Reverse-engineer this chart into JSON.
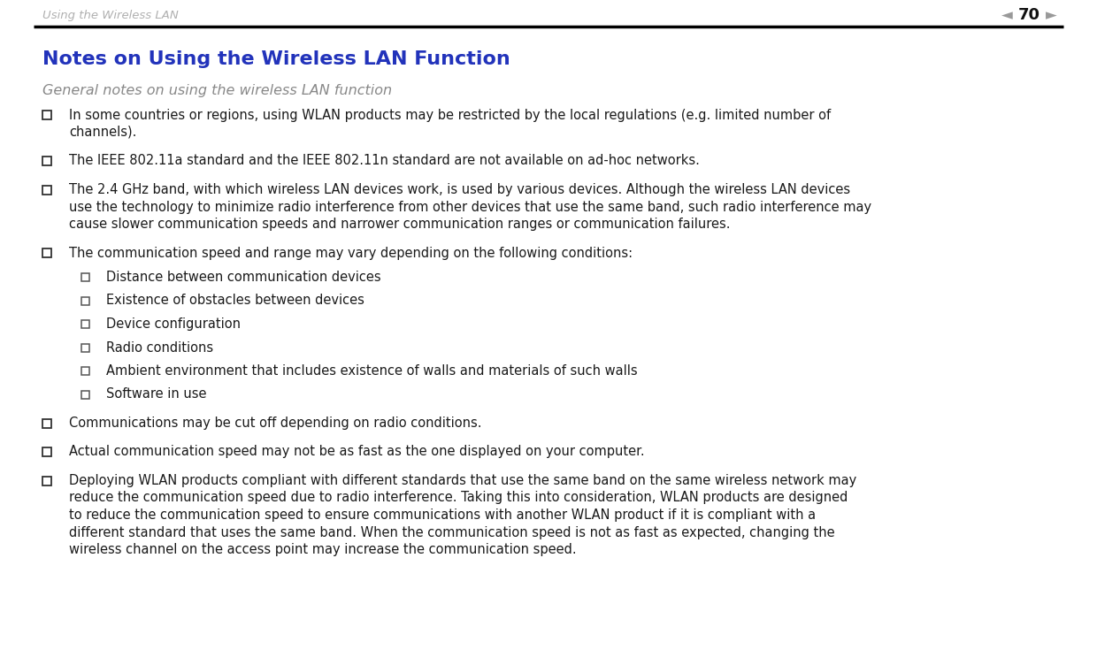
{
  "bg_color": "#ffffff",
  "header_text": "Using the Wireless LAN",
  "header_color": "#b0b0b0",
  "page_number": "70",
  "separator_color": "#000000",
  "title": "Notes on Using the Wireless LAN Function",
  "title_color": "#2233bb",
  "subtitle": "General notes on using the wireless LAN function",
  "subtitle_color": "#888888",
  "bullet_color": "#333333",
  "text_color": "#1a1a1a",
  "main_bullets": [
    "In some countries or regions, using WLAN products may be restricted by the local regulations (e.g. limited number of\nchannels).",
    "The IEEE 802.11a standard and the IEEE 802.11n standard are not available on ad-hoc networks.",
    "The 2.4 GHz band, with which wireless LAN devices work, is used by various devices. Although the wireless LAN devices\nuse the technology to minimize radio interference from other devices that use the same band, such radio interference may\ncause slower communication speeds and narrower communication ranges or communication failures.",
    "The communication speed and range may vary depending on the following conditions:",
    "Communications may be cut off depending on radio conditions.",
    "Actual communication speed may not be as fast as the one displayed on your computer.",
    "Deploying WLAN products compliant with different standards that use the same band on the same wireless network may\nreduce the communication speed due to radio interference. Taking this into consideration, WLAN products are designed\nto reduce the communication speed to ensure communications with another WLAN product if it is compliant with a\ndifferent standard that uses the same band. When the communication speed is not as fast as expected, changing the\nwireless channel on the access point may increase the communication speed."
  ],
  "sub_bullets": [
    "Distance between communication devices",
    "Existence of obstacles between devices",
    "Device configuration",
    "Radio conditions",
    "Ambient environment that includes existence of walls and materials of such walls",
    "Software in use"
  ],
  "title_fontsize": 16,
  "subtitle_fontsize": 11.5,
  "body_fontsize": 10.5,
  "header_fontsize": 9.5,
  "page_num_fontsize": 13
}
